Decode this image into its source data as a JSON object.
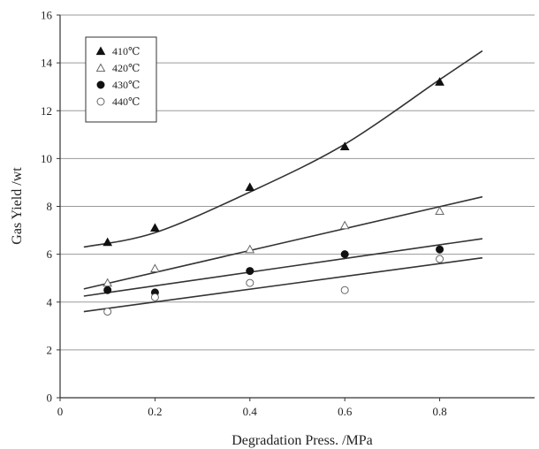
{
  "chart_data": {
    "type": "scatter",
    "title": "",
    "xlabel": "Degradation Press. /MPa",
    "ylabel": "Gas Yield /wt",
    "xlim": [
      0,
      1.0
    ],
    "ylim": [
      0,
      16
    ],
    "x_ticks": [
      "0",
      "0.2",
      "0.4",
      "0.6",
      "0.8"
    ],
    "y_ticks": [
      "0",
      "2",
      "4",
      "6",
      "8",
      "10",
      "12",
      "14",
      "16"
    ],
    "grid": "horizontal",
    "legend_position": "top-left",
    "series": [
      {
        "name": "410℃",
        "marker": "filled-triangle",
        "x": [
          0.1,
          0.2,
          0.4,
          0.6,
          0.8
        ],
        "y": [
          6.5,
          7.1,
          8.8,
          10.5,
          13.2
        ],
        "fit": {
          "x": [
            0.05,
            0.2,
            0.4,
            0.6,
            0.8,
            0.89
          ],
          "y": [
            6.3,
            6.9,
            8.6,
            10.6,
            13.3,
            14.5
          ]
        }
      },
      {
        "name": "420℃",
        "marker": "open-triangle",
        "x": [
          0.1,
          0.2,
          0.4,
          0.6,
          0.8
        ],
        "y": [
          4.8,
          5.4,
          6.2,
          7.2,
          7.8
        ],
        "fit": {
          "x": [
            0.05,
            0.89
          ],
          "y": [
            4.55,
            8.4
          ]
        }
      },
      {
        "name": "430℃",
        "marker": "filled-circle",
        "x": [
          0.1,
          0.2,
          0.4,
          0.6,
          0.8
        ],
        "y": [
          4.5,
          4.4,
          5.3,
          6.0,
          6.2
        ],
        "fit": {
          "x": [
            0.05,
            0.89
          ],
          "y": [
            4.25,
            6.65
          ]
        }
      },
      {
        "name": "440℃",
        "marker": "open-circle",
        "x": [
          0.1,
          0.2,
          0.4,
          0.6,
          0.8
        ],
        "y": [
          3.6,
          4.2,
          4.8,
          4.5,
          5.8
        ],
        "fit": {
          "x": [
            0.05,
            0.89
          ],
          "y": [
            3.6,
            5.85
          ]
        }
      }
    ]
  }
}
